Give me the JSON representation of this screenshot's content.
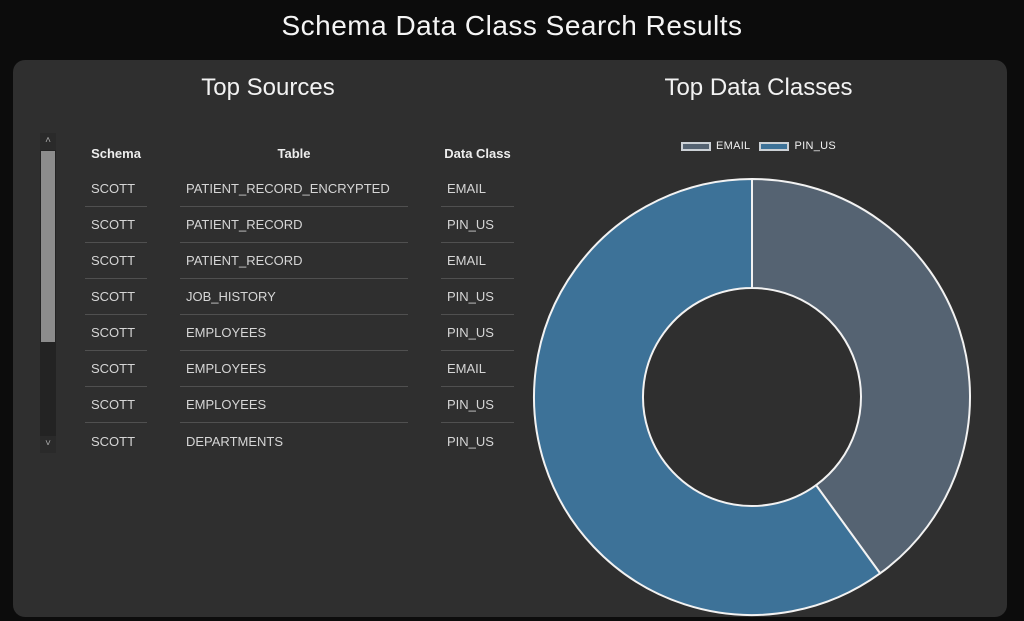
{
  "header": {
    "title": "Schema Data Class Search Results"
  },
  "sources": {
    "title": "Top Sources",
    "columns": [
      "Schema",
      "Table",
      "Data Class"
    ],
    "rows": [
      [
        "SCOTT",
        "PATIENT_RECORD_ENCRYPTED",
        "EMAIL"
      ],
      [
        "SCOTT",
        "PATIENT_RECORD",
        "PIN_US"
      ],
      [
        "SCOTT",
        "PATIENT_RECORD",
        "EMAIL"
      ],
      [
        "SCOTT",
        "JOB_HISTORY",
        "PIN_US"
      ],
      [
        "SCOTT",
        "EMPLOYEES",
        "PIN_US"
      ],
      [
        "SCOTT",
        "EMPLOYEES",
        "EMAIL"
      ],
      [
        "SCOTT",
        "EMPLOYEES",
        "PIN_US"
      ],
      [
        "SCOTT",
        "DEPARTMENTS",
        "PIN_US"
      ]
    ]
  },
  "classes": {
    "title": "Top Data Classes"
  },
  "chart_data": {
    "type": "pie",
    "subtype": "donut",
    "title": "Top Data Classes",
    "labels": [
      "EMAIL",
      "PIN_US"
    ],
    "values_percent": [
      40,
      60
    ],
    "colors": [
      "#556372",
      "#3d7298"
    ],
    "inner_radius_ratio": 0.5,
    "start_angle_deg": 0,
    "direction": "clockwise",
    "legend_position": "top",
    "stroke_color": "#f2f2f2"
  },
  "icons": {
    "chevron_up": "˄",
    "chevron_down": "˅"
  },
  "colors": {
    "page_background": "#0c0c0c",
    "panel_background": "#2f2f2f",
    "text_primary": "#f5f5f5",
    "text_cell": "#d6d6d6",
    "row_divider": "#505050",
    "scrollbar_thumb": "#8c8c8c"
  }
}
